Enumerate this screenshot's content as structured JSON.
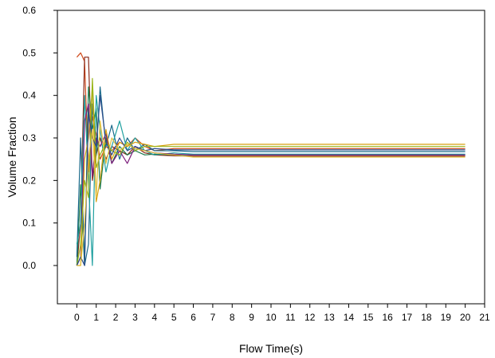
{
  "chart_data": {
    "type": "line",
    "title": "",
    "xlabel": "Flow Time(s)",
    "ylabel": "Volume Fraction",
    "xlim": [
      -1,
      21
    ],
    "ylim": [
      -0.09,
      0.6
    ],
    "xticks": [
      "0",
      "1",
      "2",
      "3",
      "4",
      "5",
      "6",
      "7",
      "8",
      "9",
      "10",
      "11",
      "12",
      "13",
      "14",
      "15",
      "16",
      "17",
      "18",
      "19",
      "20",
      "21"
    ],
    "yticks": [
      "0.0",
      "0.1",
      "0.2",
      "0.3",
      "0.4",
      "0.5",
      "0.6"
    ],
    "grid": false,
    "legend": "none",
    "series": [
      {
        "color": "#d04a1a",
        "x": [
          0,
          0.2,
          0.4,
          0.6,
          0.8,
          1.0,
          1.2,
          1.5,
          1.8,
          2.2,
          2.6,
          3.0,
          3.5,
          4.0,
          5,
          6,
          8,
          10,
          15,
          20
        ],
        "y": [
          0.49,
          0.5,
          0.48,
          0.22,
          0.35,
          0.31,
          0.25,
          0.28,
          0.27,
          0.29,
          0.28,
          0.3,
          0.28,
          0.27,
          0.275,
          0.275,
          0.275,
          0.275,
          0.275,
          0.275
        ]
      },
      {
        "color": "#8b2a1a",
        "x": [
          0,
          0.2,
          0.4,
          0.6,
          0.8,
          1.0,
          1.2,
          1.5,
          1.8,
          2.2,
          2.6,
          3.0,
          3.5,
          4.0,
          5,
          6,
          8,
          10,
          15,
          20
        ],
        "y": [
          0.0,
          0.1,
          0.49,
          0.49,
          0.2,
          0.26,
          0.3,
          0.25,
          0.28,
          0.27,
          0.26,
          0.28,
          0.265,
          0.26,
          0.258,
          0.257,
          0.257,
          0.257,
          0.257,
          0.257
        ]
      },
      {
        "color": "#1a7a4a",
        "x": [
          0,
          0.2,
          0.4,
          0.6,
          0.8,
          1.0,
          1.2,
          1.5,
          1.8,
          2.2,
          2.6,
          3.0,
          3.5,
          4.0,
          5,
          6,
          8,
          10,
          15,
          20
        ],
        "y": [
          0.0,
          0.19,
          0.0,
          0.42,
          0.32,
          0.37,
          0.18,
          0.3,
          0.24,
          0.28,
          0.26,
          0.27,
          0.26,
          0.262,
          0.26,
          0.26,
          0.26,
          0.26,
          0.26,
          0.26
        ]
      },
      {
        "color": "#1a6a8a",
        "x": [
          0,
          0.2,
          0.4,
          0.6,
          0.8,
          1.0,
          1.2,
          1.5,
          1.8,
          2.2,
          2.6,
          3.0,
          3.5,
          4.0,
          5,
          6,
          8,
          10,
          15,
          20
        ],
        "y": [
          0.02,
          0.3,
          0.0,
          0.05,
          0.38,
          0.26,
          0.42,
          0.28,
          0.33,
          0.25,
          0.3,
          0.27,
          0.285,
          0.27,
          0.27,
          0.268,
          0.268,
          0.268,
          0.268,
          0.268
        ]
      },
      {
        "color": "#20a0a0",
        "x": [
          0,
          0.2,
          0.4,
          0.6,
          0.8,
          1.0,
          1.2,
          1.5,
          1.8,
          2.2,
          2.6,
          3.0,
          3.5,
          4.0,
          5,
          6,
          8,
          10,
          15,
          20
        ],
        "y": [
          0.05,
          0.1,
          0.4,
          0.2,
          0.0,
          0.4,
          0.32,
          0.22,
          0.28,
          0.34,
          0.27,
          0.3,
          0.27,
          0.26,
          0.265,
          0.262,
          0.262,
          0.262,
          0.262,
          0.262
        ]
      },
      {
        "color": "#7a1a7a",
        "x": [
          0,
          0.2,
          0.4,
          0.6,
          0.8,
          1.0,
          1.2,
          1.5,
          1.8,
          2.2,
          2.6,
          3.0,
          3.5,
          4.0,
          5,
          6,
          8,
          10,
          15,
          20
        ],
        "y": [
          0.0,
          0.02,
          0.34,
          0.38,
          0.21,
          0.3,
          0.28,
          0.31,
          0.24,
          0.27,
          0.24,
          0.28,
          0.27,
          0.265,
          0.262,
          0.26,
          0.26,
          0.26,
          0.26,
          0.26
        ]
      },
      {
        "color": "#d8a010",
        "x": [
          0,
          0.2,
          0.4,
          0.6,
          0.8,
          1.0,
          1.2,
          1.5,
          1.8,
          2.2,
          2.6,
          3.0,
          3.5,
          4.0,
          5,
          6,
          8,
          10,
          15,
          20
        ],
        "y": [
          0.0,
          0.0,
          0.25,
          0.3,
          0.42,
          0.15,
          0.2,
          0.32,
          0.25,
          0.29,
          0.28,
          0.29,
          0.285,
          0.28,
          0.285,
          0.285,
          0.285,
          0.285,
          0.285,
          0.285
        ]
      },
      {
        "color": "#9ab51a",
        "x": [
          0,
          0.2,
          0.4,
          0.6,
          0.8,
          1.0,
          1.2,
          1.5,
          1.8,
          2.2,
          2.6,
          3.0,
          3.5,
          4.0,
          5,
          6,
          8,
          10,
          15,
          20
        ],
        "y": [
          0.0,
          0.05,
          0.2,
          0.16,
          0.44,
          0.23,
          0.26,
          0.29,
          0.27,
          0.26,
          0.29,
          0.27,
          0.28,
          0.28,
          0.28,
          0.28,
          0.28,
          0.28,
          0.28,
          0.28
        ]
      },
      {
        "color": "#2a4a8a",
        "x": [
          0,
          0.2,
          0.4,
          0.6,
          0.8,
          1.0,
          1.2,
          1.5,
          1.8,
          2.2,
          2.6,
          3.0,
          3.5,
          4.0,
          5,
          6,
          8,
          10,
          15,
          20
        ],
        "y": [
          0.0,
          0.02,
          0.0,
          0.36,
          0.3,
          0.28,
          0.4,
          0.29,
          0.26,
          0.3,
          0.27,
          0.28,
          0.27,
          0.275,
          0.272,
          0.272,
          0.272,
          0.272,
          0.272,
          0.272
        ]
      },
      {
        "color": "#e0c040",
        "x": [
          0,
          0.2,
          0.4,
          0.6,
          0.8,
          1.0,
          1.2,
          1.5,
          1.8,
          2.2,
          2.6,
          3.0,
          3.5,
          4.0,
          5,
          6,
          8,
          10,
          15,
          20
        ],
        "y": [
          0.0,
          0.0,
          0.1,
          0.25,
          0.32,
          0.16,
          0.34,
          0.24,
          0.3,
          0.27,
          0.285,
          0.275,
          0.27,
          0.265,
          0.26,
          0.255,
          0.255,
          0.255,
          0.255,
          0.255
        ]
      }
    ]
  }
}
